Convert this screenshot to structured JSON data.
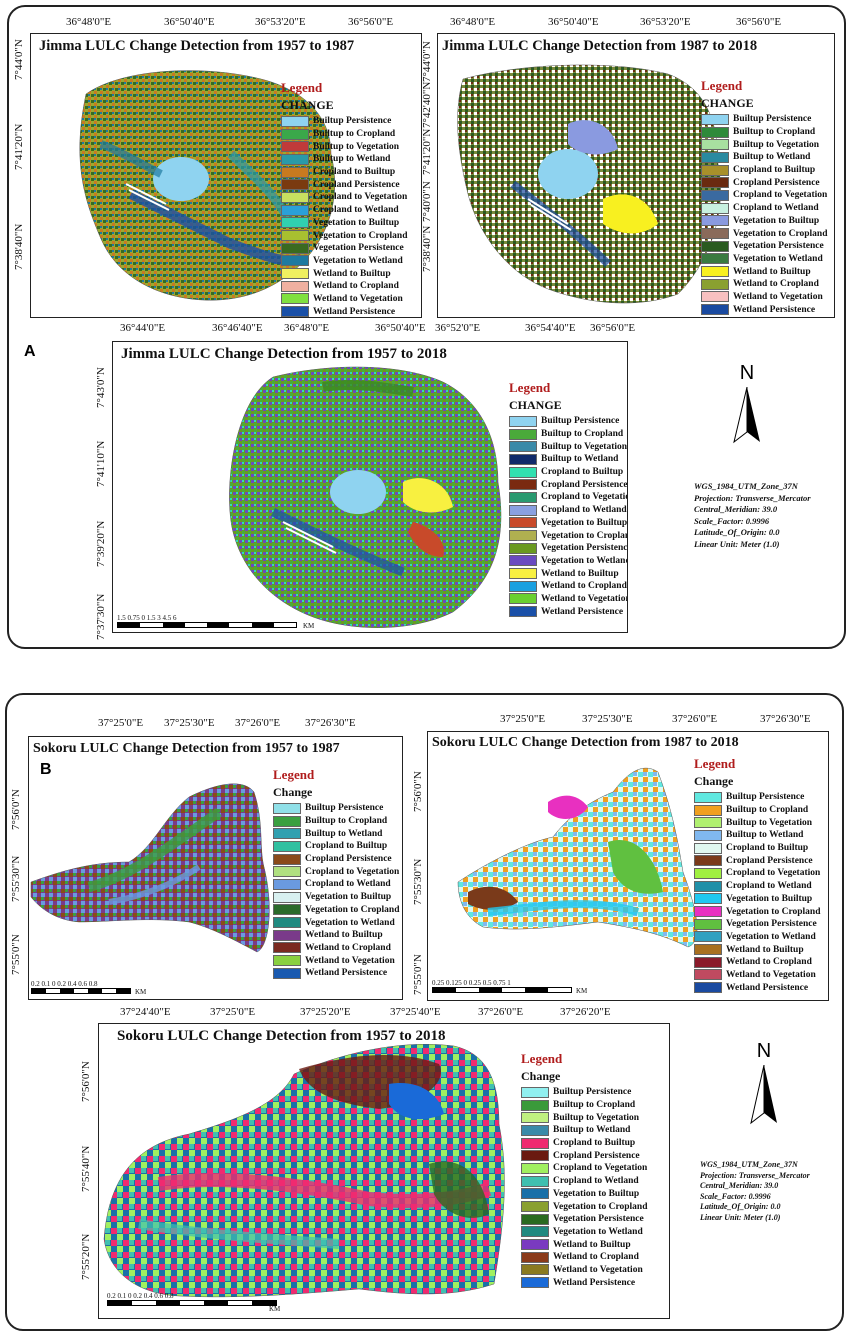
{
  "panelA": {
    "label": "A",
    "maps": [
      {
        "title": "Jimma LULC Change Detection from 1957  to 1987",
        "top_coords": [
          "36°48'0\"E",
          "36°50'40\"E",
          "36°53'20\"E",
          "36°56'0\"E"
        ],
        "left_coords": [
          "7°44'0\"N",
          "7°41'20\"N",
          "7°38'40\"N"
        ],
        "legend_title": "Legend",
        "legend_sub": "CHANGE",
        "legend_items": [
          {
            "label": "Builtup Persistence",
            "color": "#8fd3f0"
          },
          {
            "label": "Builtup to Cropland",
            "color": "#3aa84a"
          },
          {
            "label": "Builtup to Vegetation",
            "color": "#c03a3a"
          },
          {
            "label": "Builtup to Wetland",
            "color": "#2a9aa8"
          },
          {
            "label": "Cropland to Builtup",
            "color": "#c87a20"
          },
          {
            "label": "Cropland Persistence",
            "color": "#7a3a10"
          },
          {
            "label": "Cropland to Vegetation",
            "color": "#c8e060"
          },
          {
            "label": "Cropland to Wetland",
            "color": "#2aa0d8"
          },
          {
            "label": "Vegetation to Builtup",
            "color": "#30d0b0"
          },
          {
            "label": "Vegetation to Cropland",
            "color": "#a8c030"
          },
          {
            "label": "Vegetation Persistence",
            "color": "#3a6a20"
          },
          {
            "label": "Vegetation to Wetland",
            "color": "#1e7aa0"
          },
          {
            "label": "Wetland to Builtup",
            "color": "#f0f060"
          },
          {
            "label": "Wetland to Cropland",
            "color": "#f0b0a0"
          },
          {
            "label": "Wetland to Vegetation",
            "color": "#80e040"
          },
          {
            "label": "Wetland Persistence",
            "color": "#1a50a8"
          }
        ]
      },
      {
        "title": "Jimma LULC Change Detection from 1987 to 2018",
        "top_coords": [
          "36°48'0\"E",
          "36°50'40\"E",
          "36°53'20\"E",
          "36°56'0\"E"
        ],
        "left_coords": [
          "7°44'0\"N",
          "7°42'40\"N",
          "7°41'20\"N",
          "7°40'0\"N",
          "7°38'40\"N"
        ],
        "legend_title": "Legend",
        "legend_sub": "CHANGE",
        "legend_items": [
          {
            "label": "Builtup Persistence",
            "color": "#8fd3f0"
          },
          {
            "label": "Builtup to Cropland",
            "color": "#2e8a3a"
          },
          {
            "label": "Builtup to Vegetation",
            "color": "#a8e0a0"
          },
          {
            "label": "Builtup to Wetland",
            "color": "#2a8aa0"
          },
          {
            "label": "Cropland to Builtup",
            "color": "#a8902a"
          },
          {
            "label": "Cropland Persistence",
            "color": "#6a2a10"
          },
          {
            "label": "Cropland to Vegetation",
            "color": "#3a6aa0"
          },
          {
            "label": "Cropland to Wetland",
            "color": "#c8f0e0"
          },
          {
            "label": "Vegetation to Builtup",
            "color": "#8a9ae0"
          },
          {
            "label": "Vegetation to Cropland",
            "color": "#8a6a5a"
          },
          {
            "label": "Vegetation Persistence",
            "color": "#2a5a20"
          },
          {
            "label": "Vegetation to Wetland",
            "color": "#3a7a40"
          },
          {
            "label": "Wetland to Builtup",
            "color": "#f8f020"
          },
          {
            "label": "Wetland to Cropland",
            "color": "#8aa030"
          },
          {
            "label": "Wetland to Vegetation",
            "color": "#f8c0c0"
          },
          {
            "label": "Wetland Persistence",
            "color": "#1a4aa0"
          }
        ]
      },
      {
        "title": "Jimma LULC Change Detection from 1957 to 2018",
        "top_coords": [
          "36°44'0\"E",
          "36°46'40\"E",
          "36°48'0\"E",
          "36°50'40\"E",
          "36°52'0\"E",
          "36°54'40\"E",
          "36°56'0\"E"
        ],
        "left_coords": [
          "7°43'0\"N",
          "7°41'10\"N",
          "7°39'20\"N",
          "7°37'30\"N"
        ],
        "legend_title": "Legend",
        "legend_sub": "CHANGE",
        "legend_items": [
          {
            "label": "Builtup Persistence",
            "color": "#8fd3f0"
          },
          {
            "label": "Builtup to Cropland",
            "color": "#4aaa3a"
          },
          {
            "label": "Builtup to Vegetation",
            "color": "#3a8aa8"
          },
          {
            "label": "Builtup to Wetland",
            "color": "#102a6a"
          },
          {
            "label": "Cropland to Builtup",
            "color": "#30e0b0"
          },
          {
            "label": "Cropland Persistence",
            "color": "#7a2a10"
          },
          {
            "label": "Cropland to Vegetation",
            "color": "#2a9a70"
          },
          {
            "label": "Cropland to Wetland",
            "color": "#8aa0e0"
          },
          {
            "label": "Vegetation to Builtup",
            "color": "#c84a2a"
          },
          {
            "label": "Vegetation to Cropland",
            "color": "#b0b050"
          },
          {
            "label": "Vegetation Persistence",
            "color": "#6a9a20"
          },
          {
            "label": "Vegetation to Wetland",
            "color": "#6a4ac0"
          },
          {
            "label": "Wetland to Builtup",
            "color": "#f8f040"
          },
          {
            "label": "Wetland to Cropland",
            "color": "#1aa0e0"
          },
          {
            "label": "Wetland to Vegetation",
            "color": "#6ad030"
          },
          {
            "label": "Wetland Persistence",
            "color": "#1a50a8"
          }
        ]
      }
    ],
    "scale_labels": "1.5  0.75   0         1.5          3            4.5           6",
    "scale_unit": "KM",
    "north_label": "N",
    "projection_lines": [
      "WGS_1984_UTM_Zone_37N",
      "Projection: Transverse_Mercator",
      "Central_Meridian: 39.0",
      "Scale_Factor: 0.9996",
      "Latitude_Of_Origin: 0.0",
      "Linear Unit: Meter (1.0)"
    ]
  },
  "panelB": {
    "label": "B",
    "maps": [
      {
        "title": "Sokoru LULC Change Detection from 1957  to 1987",
        "top_coords": [
          "37°25'0\"E",
          "37°25'30\"E",
          "37°26'0\"E",
          "37°26'30\"E"
        ],
        "left_coords": [
          "7°56'0\"N",
          "7°55'30\"N",
          "7°55'0\"N"
        ],
        "legend_title": "Legend",
        "legend_sub": "Change",
        "legend_items": [
          {
            "label": "Builtup Persistence",
            "color": "#90e0e8"
          },
          {
            "label": "Builtup to Cropland",
            "color": "#3aa040"
          },
          {
            "label": "Builtup to Wetland",
            "color": "#30a0b0"
          },
          {
            "label": "Cropland to Builtup",
            "color": "#30c0a0"
          },
          {
            "label": "Cropland Persistence",
            "color": "#8a4a1a"
          },
          {
            "label": "Cropland to Vegetation",
            "color": "#b0e080"
          },
          {
            "label": "Cropland to Wetland",
            "color": "#6a9ae0"
          },
          {
            "label": "Vegetation to Builtup",
            "color": "#d8f0f0"
          },
          {
            "label": "Vegetation to Cropland",
            "color": "#2a6a2a"
          },
          {
            "label": "Vegetation to Wetland",
            "color": "#208a80"
          },
          {
            "label": "Wetland to Builtup",
            "color": "#7a3a8a"
          },
          {
            "label": "Wetland to Cropland",
            "color": "#7a2a20"
          },
          {
            "label": "Wetland to Vegetation",
            "color": "#8ad040"
          },
          {
            "label": "Wetland Persistence",
            "color": "#1a5ab0"
          }
        ],
        "scale_labels": "0.2 0.1  0      0.2    0.4    0.6    0.8",
        "scale_unit": "KM"
      },
      {
        "title": "Sokoru LULC Change Detection from 1987 to 2018",
        "top_coords": [
          "37°25'0\"E",
          "37°25'30\"E",
          "37°26'0\"E",
          "37°26'30\"E"
        ],
        "left_coords": [
          "7°56'0\"N",
          "7°55'30\"N",
          "7°55'0\"N"
        ],
        "legend_title": "Legend",
        "legend_sub": "Change",
        "legend_items": [
          {
            "label": "Builtup Persistence",
            "color": "#60e8e0"
          },
          {
            "label": "Builtup to Cropland",
            "color": "#f0a020"
          },
          {
            "label": "Builtup to Vegetation",
            "color": "#b0f070"
          },
          {
            "label": "Builtup to Wetland",
            "color": "#80b8f0"
          },
          {
            "label": "Cropland to Builtup",
            "color": "#e0f8f0"
          },
          {
            "label": "Cropland Persistence",
            "color": "#7a3a1a"
          },
          {
            "label": "Cropland to Vegetation",
            "color": "#a0f040"
          },
          {
            "label": "Cropland to Wetland",
            "color": "#2090a8"
          },
          {
            "label": "Vegetation to Builtup",
            "color": "#20c8f0"
          },
          {
            "label": "Vegetation to Cropland",
            "color": "#e830c0"
          },
          {
            "label": "Vegetation Persistence",
            "color": "#60c040"
          },
          {
            "label": "Vegetation to Wetland",
            "color": "#30a0c0"
          },
          {
            "label": "Wetland to Builtup",
            "color": "#a87020"
          },
          {
            "label": "Wetland to Cropland",
            "color": "#8a1a2a"
          },
          {
            "label": "Wetland to Vegetation",
            "color": "#c04a60"
          },
          {
            "label": "Wetland Persistence",
            "color": "#1a4aa0"
          }
        ],
        "scale_labels": "0.25 0.125 0      0.25      0.5      0.75      1",
        "scale_unit": "KM"
      },
      {
        "title": "Sokoru LULC Change Detection from 1957 to 2018",
        "top_coords": [
          "37°24'40\"E",
          "37°25'0\"E",
          "37°25'20\"E",
          "37°25'40\"E",
          "37°26'0\"E",
          "37°26'20\"E"
        ],
        "left_coords": [
          "7°56'0\"N",
          "7°55'40\"N",
          "7°55'20\"N"
        ],
        "legend_title": "Legend",
        "legend_sub": "Change",
        "legend_items": [
          {
            "label": "Builtup Persistence",
            "color": "#90f0f0"
          },
          {
            "label": "Builtup to Cropland",
            "color": "#3a9a3a"
          },
          {
            "label": "Builtup to Vegetation",
            "color": "#c0f080"
          },
          {
            "label": "Builtup to Wetland",
            "color": "#3a8aa8"
          },
          {
            "label": "Cropland to Builtup",
            "color": "#f02a70"
          },
          {
            "label": "Cropland Persistence",
            "color": "#6a1a10"
          },
          {
            "label": "Cropland to Vegetation",
            "color": "#a0f060"
          },
          {
            "label": "Cropland to Wetland",
            "color": "#40c0b0"
          },
          {
            "label": "Vegetation to Builtup",
            "color": "#1a70a8"
          },
          {
            "label": "Vegetation to Cropland",
            "color": "#8aa030"
          },
          {
            "label": "Vegetation Persistence",
            "color": "#2a6a20"
          },
          {
            "label": "Vegetation to Wetland",
            "color": "#208a80"
          },
          {
            "label": "Wetland to Builtup",
            "color": "#7a3ac0"
          },
          {
            "label": "Wetland to Cropland",
            "color": "#8a3a1a"
          },
          {
            "label": "Wetland to Vegetation",
            "color": "#8a7a20"
          },
          {
            "label": "Wetland Persistence",
            "color": "#1a6ad8"
          }
        ],
        "scale_labels": "0.2  0.1   0       0.2       0.4       0.6       0.8",
        "scale_unit": "KM"
      }
    ],
    "north_label": "N",
    "projection_lines": [
      "WGS_1984_UTM_Zone_37N",
      "Projection: Transverse_Mercator",
      "Central_Meridian: 39.0",
      "Scale_Factor: 0.9996",
      "Latitude_Of_Origin: 0.0",
      "Linear Unit: Meter (1.0)"
    ]
  }
}
